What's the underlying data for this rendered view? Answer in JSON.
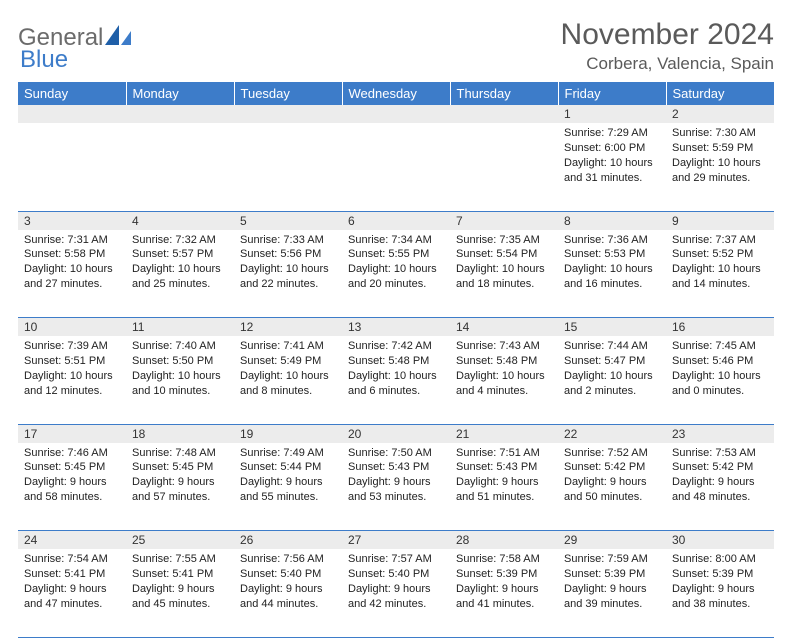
{
  "logo": {
    "text1": "General",
    "text2": "Blue"
  },
  "title": "November 2024",
  "location": "Corbera, Valencia, Spain",
  "colors": {
    "header_bg": "#3d7cc9",
    "header_text": "#ffffff",
    "daynum_bg": "#ececec",
    "border": "#3d7cc9",
    "title_color": "#5a5a5a",
    "logo_gray": "#6b6b6b",
    "logo_blue": "#3d7cc9"
  },
  "weekdays": [
    "Sunday",
    "Monday",
    "Tuesday",
    "Wednesday",
    "Thursday",
    "Friday",
    "Saturday"
  ],
  "weeks": [
    [
      {
        "n": "",
        "sr": "",
        "ss": "",
        "dl": ""
      },
      {
        "n": "",
        "sr": "",
        "ss": "",
        "dl": ""
      },
      {
        "n": "",
        "sr": "",
        "ss": "",
        "dl": ""
      },
      {
        "n": "",
        "sr": "",
        "ss": "",
        "dl": ""
      },
      {
        "n": "",
        "sr": "",
        "ss": "",
        "dl": ""
      },
      {
        "n": "1",
        "sr": "Sunrise: 7:29 AM",
        "ss": "Sunset: 6:00 PM",
        "dl": "Daylight: 10 hours and 31 minutes."
      },
      {
        "n": "2",
        "sr": "Sunrise: 7:30 AM",
        "ss": "Sunset: 5:59 PM",
        "dl": "Daylight: 10 hours and 29 minutes."
      }
    ],
    [
      {
        "n": "3",
        "sr": "Sunrise: 7:31 AM",
        "ss": "Sunset: 5:58 PM",
        "dl": "Daylight: 10 hours and 27 minutes."
      },
      {
        "n": "4",
        "sr": "Sunrise: 7:32 AM",
        "ss": "Sunset: 5:57 PM",
        "dl": "Daylight: 10 hours and 25 minutes."
      },
      {
        "n": "5",
        "sr": "Sunrise: 7:33 AM",
        "ss": "Sunset: 5:56 PM",
        "dl": "Daylight: 10 hours and 22 minutes."
      },
      {
        "n": "6",
        "sr": "Sunrise: 7:34 AM",
        "ss": "Sunset: 5:55 PM",
        "dl": "Daylight: 10 hours and 20 minutes."
      },
      {
        "n": "7",
        "sr": "Sunrise: 7:35 AM",
        "ss": "Sunset: 5:54 PM",
        "dl": "Daylight: 10 hours and 18 minutes."
      },
      {
        "n": "8",
        "sr": "Sunrise: 7:36 AM",
        "ss": "Sunset: 5:53 PM",
        "dl": "Daylight: 10 hours and 16 minutes."
      },
      {
        "n": "9",
        "sr": "Sunrise: 7:37 AM",
        "ss": "Sunset: 5:52 PM",
        "dl": "Daylight: 10 hours and 14 minutes."
      }
    ],
    [
      {
        "n": "10",
        "sr": "Sunrise: 7:39 AM",
        "ss": "Sunset: 5:51 PM",
        "dl": "Daylight: 10 hours and 12 minutes."
      },
      {
        "n": "11",
        "sr": "Sunrise: 7:40 AM",
        "ss": "Sunset: 5:50 PM",
        "dl": "Daylight: 10 hours and 10 minutes."
      },
      {
        "n": "12",
        "sr": "Sunrise: 7:41 AM",
        "ss": "Sunset: 5:49 PM",
        "dl": "Daylight: 10 hours and 8 minutes."
      },
      {
        "n": "13",
        "sr": "Sunrise: 7:42 AM",
        "ss": "Sunset: 5:48 PM",
        "dl": "Daylight: 10 hours and 6 minutes."
      },
      {
        "n": "14",
        "sr": "Sunrise: 7:43 AM",
        "ss": "Sunset: 5:48 PM",
        "dl": "Daylight: 10 hours and 4 minutes."
      },
      {
        "n": "15",
        "sr": "Sunrise: 7:44 AM",
        "ss": "Sunset: 5:47 PM",
        "dl": "Daylight: 10 hours and 2 minutes."
      },
      {
        "n": "16",
        "sr": "Sunrise: 7:45 AM",
        "ss": "Sunset: 5:46 PM",
        "dl": "Daylight: 10 hours and 0 minutes."
      }
    ],
    [
      {
        "n": "17",
        "sr": "Sunrise: 7:46 AM",
        "ss": "Sunset: 5:45 PM",
        "dl": "Daylight: 9 hours and 58 minutes."
      },
      {
        "n": "18",
        "sr": "Sunrise: 7:48 AM",
        "ss": "Sunset: 5:45 PM",
        "dl": "Daylight: 9 hours and 57 minutes."
      },
      {
        "n": "19",
        "sr": "Sunrise: 7:49 AM",
        "ss": "Sunset: 5:44 PM",
        "dl": "Daylight: 9 hours and 55 minutes."
      },
      {
        "n": "20",
        "sr": "Sunrise: 7:50 AM",
        "ss": "Sunset: 5:43 PM",
        "dl": "Daylight: 9 hours and 53 minutes."
      },
      {
        "n": "21",
        "sr": "Sunrise: 7:51 AM",
        "ss": "Sunset: 5:43 PM",
        "dl": "Daylight: 9 hours and 51 minutes."
      },
      {
        "n": "22",
        "sr": "Sunrise: 7:52 AM",
        "ss": "Sunset: 5:42 PM",
        "dl": "Daylight: 9 hours and 50 minutes."
      },
      {
        "n": "23",
        "sr": "Sunrise: 7:53 AM",
        "ss": "Sunset: 5:42 PM",
        "dl": "Daylight: 9 hours and 48 minutes."
      }
    ],
    [
      {
        "n": "24",
        "sr": "Sunrise: 7:54 AM",
        "ss": "Sunset: 5:41 PM",
        "dl": "Daylight: 9 hours and 47 minutes."
      },
      {
        "n": "25",
        "sr": "Sunrise: 7:55 AM",
        "ss": "Sunset: 5:41 PM",
        "dl": "Daylight: 9 hours and 45 minutes."
      },
      {
        "n": "26",
        "sr": "Sunrise: 7:56 AM",
        "ss": "Sunset: 5:40 PM",
        "dl": "Daylight: 9 hours and 44 minutes."
      },
      {
        "n": "27",
        "sr": "Sunrise: 7:57 AM",
        "ss": "Sunset: 5:40 PM",
        "dl": "Daylight: 9 hours and 42 minutes."
      },
      {
        "n": "28",
        "sr": "Sunrise: 7:58 AM",
        "ss": "Sunset: 5:39 PM",
        "dl": "Daylight: 9 hours and 41 minutes."
      },
      {
        "n": "29",
        "sr": "Sunrise: 7:59 AM",
        "ss": "Sunset: 5:39 PM",
        "dl": "Daylight: 9 hours and 39 minutes."
      },
      {
        "n": "30",
        "sr": "Sunrise: 8:00 AM",
        "ss": "Sunset: 5:39 PM",
        "dl": "Daylight: 9 hours and 38 minutes."
      }
    ]
  ]
}
